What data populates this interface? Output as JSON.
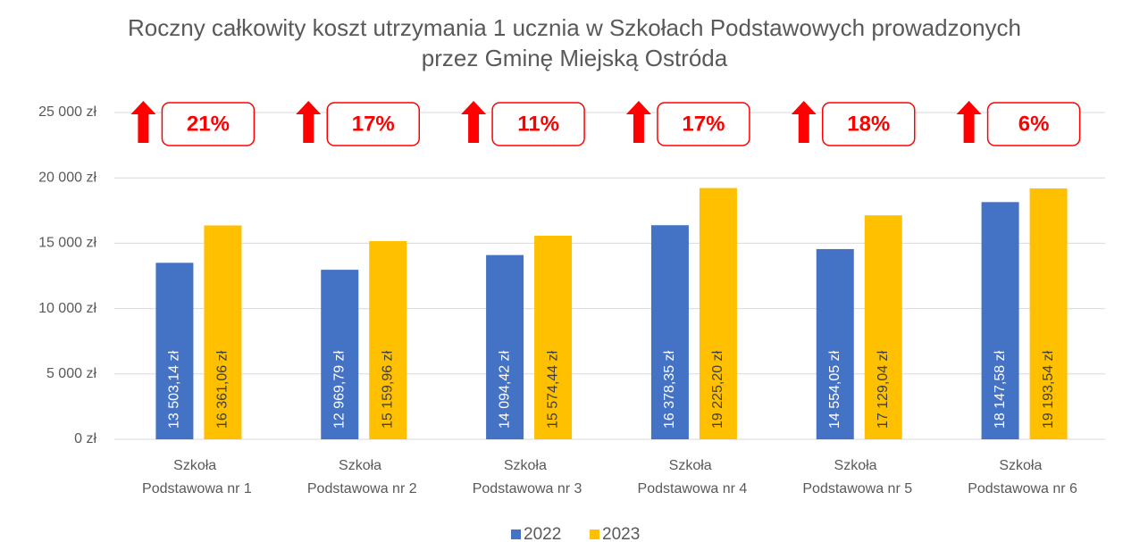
{
  "chart_data": {
    "type": "bar",
    "title": "Roczny całkowity koszt utrzymania 1 ucznia w Szkołach Podstawowych prowadzonych przez Gminę Miejską Ostróda",
    "categories": [
      "Szkoła Podstawowa nr 1",
      "Szkoła Podstawowa nr 2",
      "Szkoła Podstawowa nr 3",
      "Szkoła Podstawowa nr 4",
      "Szkoła Podstawowa nr 5",
      "Szkoła Podstawowa nr 6"
    ],
    "series": [
      {
        "name": "2022",
        "color": "#4472c4",
        "values": [
          13503.14,
          12969.79,
          14094.42,
          16378.35,
          14554.05,
          18147.58
        ],
        "value_labels": [
          "13 503,14 zł",
          "12 969,79 zł",
          "14 094,42 zł",
          "16 378,35 zł",
          "14 554,05 zł",
          "18 147,58 zł"
        ]
      },
      {
        "name": "2023",
        "color": "#ffc000",
        "values": [
          16361.06,
          15159.96,
          15574.44,
          19225.2,
          17129.04,
          19193.54
        ],
        "value_labels": [
          "16 361,06 zł",
          "15 159,96 zł",
          "15 574,44 zł",
          "19 225,20 zł",
          "17 129,04 zł",
          "19 193,54 zł"
        ]
      }
    ],
    "annotations": [
      "21%",
      "17%",
      "11%",
      "17%",
      "18%",
      "6%"
    ],
    "ylim": [
      0,
      25000
    ],
    "yticks": [
      {
        "value": 0,
        "label": "0 zł"
      },
      {
        "value": 5000,
        "label": "5 000 zł"
      },
      {
        "value": 10000,
        "label": "10 000 zł"
      },
      {
        "value": 15000,
        "label": "15 000 zł"
      },
      {
        "value": 20000,
        "label": "20 000 zł"
      },
      {
        "value": 25000,
        "label": "25 000 zł"
      }
    ],
    "grid": true,
    "legend": "bottom"
  }
}
